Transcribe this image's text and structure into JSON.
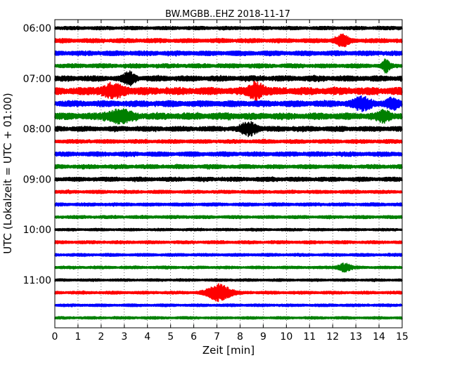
{
  "chart_data": {
    "type": "line",
    "title": "BW.MGBB..EHZ 2018-11-17",
    "xlabel": "Zeit  [min]",
    "ylabel": "UTC (Lokalzeit = UTC + 01:00)",
    "xlim": [
      0,
      15
    ],
    "x_ticks": [
      0,
      1,
      2,
      3,
      4,
      5,
      6,
      7,
      8,
      9,
      10,
      11,
      12,
      13,
      14,
      15
    ],
    "y_tick_labels": [
      "06:00",
      "07:00",
      "08:00",
      "09:00",
      "10:00",
      "11:00"
    ],
    "grid": "vertical dotted",
    "trace_colors": [
      "#000000",
      "#ff0000",
      "#0000ff",
      "#008000"
    ],
    "traces": [
      {
        "label": "06:00",
        "amplitude": 0.18
      },
      {
        "label": "06:15",
        "amplitude": 0.22
      },
      {
        "label": "06:30",
        "amplitude": 0.25
      },
      {
        "label": "06:45",
        "amplitude": 0.22
      },
      {
        "label": "07:00",
        "amplitude": 0.28
      },
      {
        "label": "07:15",
        "amplitude": 0.38
      },
      {
        "label": "07:30",
        "amplitude": 0.32
      },
      {
        "label": "07:45",
        "amplitude": 0.34
      },
      {
        "label": "08:00",
        "amplitude": 0.26
      },
      {
        "label": "08:15",
        "amplitude": 0.2
      },
      {
        "label": "08:30",
        "amplitude": 0.24
      },
      {
        "label": "08:45",
        "amplitude": 0.21
      },
      {
        "label": "09:00",
        "amplitude": 0.22
      },
      {
        "label": "09:15",
        "amplitude": 0.17
      },
      {
        "label": "09:30",
        "amplitude": 0.17
      },
      {
        "label": "09:45",
        "amplitude": 0.16
      },
      {
        "label": "10:00",
        "amplitude": 0.13
      },
      {
        "label": "10:15",
        "amplitude": 0.16
      },
      {
        "label": "10:30",
        "amplitude": 0.15
      },
      {
        "label": "10:45",
        "amplitude": 0.14
      },
      {
        "label": "11:00",
        "amplitude": 0.13
      },
      {
        "label": "11:15",
        "amplitude": 0.15
      },
      {
        "label": "11:30",
        "amplitude": 0.14
      },
      {
        "label": "11:45",
        "amplitude": 0.13
      }
    ],
    "events": [
      {
        "trace": 4,
        "x": 3.2,
        "width": 0.35,
        "amplitude": 0.55
      },
      {
        "trace": 5,
        "x": 2.5,
        "width": 0.8,
        "amplitude": 0.45
      },
      {
        "trace": 5,
        "x": 8.7,
        "width": 0.45,
        "amplitude": 0.75
      },
      {
        "trace": 6,
        "x": 13.3,
        "width": 0.6,
        "amplitude": 0.5
      },
      {
        "trace": 6,
        "x": 14.6,
        "width": 0.35,
        "amplitude": 0.45
      },
      {
        "trace": 7,
        "x": 2.8,
        "width": 0.8,
        "amplitude": 0.5
      },
      {
        "trace": 7,
        "x": 14.2,
        "width": 0.4,
        "amplitude": 0.45
      },
      {
        "trace": 8,
        "x": 8.4,
        "width": 0.5,
        "amplitude": 0.55
      },
      {
        "trace": 1,
        "x": 12.4,
        "width": 0.4,
        "amplitude": 0.5
      },
      {
        "trace": 3,
        "x": 14.3,
        "width": 0.2,
        "amplitude": 0.6
      },
      {
        "trace": 21,
        "x": 7.1,
        "width": 0.7,
        "amplitude": 0.8
      },
      {
        "trace": 19,
        "x": 12.5,
        "width": 0.4,
        "amplitude": 0.35
      }
    ]
  }
}
